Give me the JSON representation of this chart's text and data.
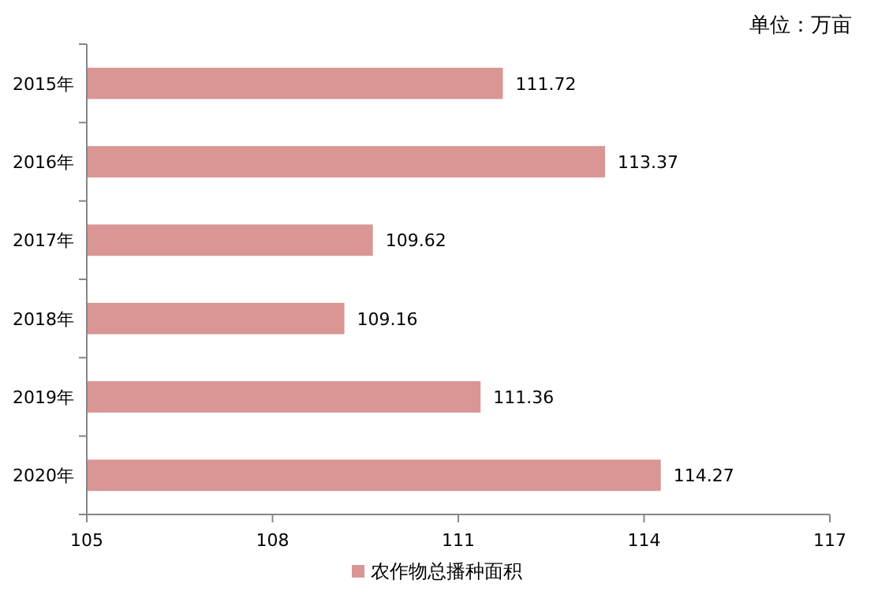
{
  "chart_data": {
    "type": "bar",
    "orientation": "horizontal",
    "categories": [
      "2015年",
      "2016年",
      "2017年",
      "2018年",
      "2019年",
      "2020年"
    ],
    "series": [
      {
        "name": "农作物总播种面积",
        "color": "#d99694",
        "values": [
          111.72,
          113.37,
          109.62,
          109.16,
          111.36,
          114.27
        ]
      }
    ],
    "xlim": [
      105,
      117
    ],
    "xticks": [
      105,
      108,
      111,
      114,
      117
    ],
    "data_labels": true,
    "legend": "bottom",
    "grid": false,
    "annotations": [
      "单位：万亩"
    ]
  }
}
